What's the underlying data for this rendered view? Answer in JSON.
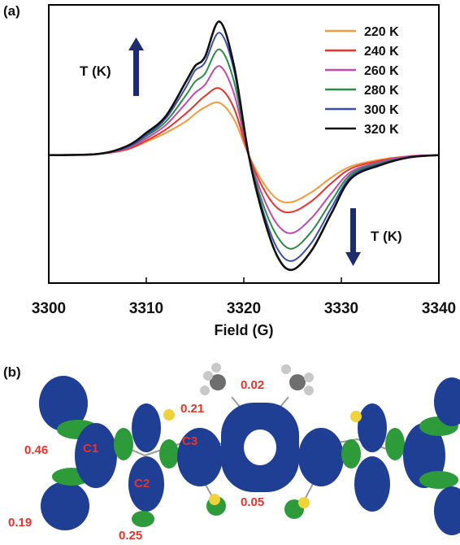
{
  "panel_a_label": "(a)",
  "panel_b_label": "(b)",
  "chart_data": {
    "type": "line",
    "title": "",
    "xlabel": "Field (G)",
    "ylabel": "",
    "xlim": [
      3300,
      3340
    ],
    "xticks": [
      3300,
      3310,
      3320,
      3330,
      3340
    ],
    "ylim": [
      -1.15,
      1.35
    ],
    "grid": false,
    "legend_position": "top-right",
    "series": [
      {
        "name": "220 K",
        "color": "#f39a3c",
        "x": [
          3300,
          3305,
          3308,
          3310,
          3312,
          3314,
          3315,
          3316,
          3317.5,
          3319,
          3320.5,
          3322,
          3323.5,
          3325,
          3327,
          3329,
          3331,
          3334,
          3337,
          3340
        ],
        "y": [
          0,
          0.01,
          0.05,
          0.12,
          0.2,
          0.3,
          0.37,
          0.43,
          0.47,
          0.32,
          0.0,
          -0.25,
          -0.4,
          -0.42,
          -0.33,
          -0.2,
          -0.1,
          -0.04,
          -0.01,
          0
        ]
      },
      {
        "name": "240 K",
        "color": "#e8322a",
        "x": [
          3300,
          3305,
          3308,
          3310,
          3312,
          3314,
          3315,
          3316,
          3317.5,
          3319,
          3320.5,
          3322,
          3323.5,
          3325,
          3327,
          3329,
          3331,
          3334,
          3337,
          3340
        ],
        "y": [
          0,
          0.01,
          0.05,
          0.13,
          0.23,
          0.37,
          0.45,
          0.53,
          0.6,
          0.42,
          0.0,
          -0.3,
          -0.48,
          -0.51,
          -0.41,
          -0.25,
          -0.12,
          -0.05,
          -0.01,
          0
        ]
      },
      {
        "name": "260 K",
        "color": "#c24aac",
        "x": [
          3300,
          3305,
          3308,
          3310,
          3312,
          3314,
          3315,
          3316,
          3317.5,
          3319,
          3320.5,
          3322,
          3323.5,
          3325,
          3327,
          3329,
          3331,
          3334,
          3337,
          3340
        ],
        "y": [
          0,
          0.01,
          0.06,
          0.15,
          0.27,
          0.46,
          0.56,
          0.63,
          0.8,
          0.55,
          0.0,
          -0.38,
          -0.63,
          -0.7,
          -0.56,
          -0.34,
          -0.15,
          -0.06,
          -0.01,
          0
        ]
      },
      {
        "name": "280 K",
        "color": "#2e8b45",
        "x": [
          3300,
          3305,
          3308,
          3310,
          3312,
          3314,
          3315,
          3316,
          3317.5,
          3319,
          3320.5,
          3322,
          3323.5,
          3325,
          3327,
          3329,
          3331,
          3334,
          3337,
          3340
        ],
        "y": [
          0,
          0.01,
          0.07,
          0.17,
          0.3,
          0.53,
          0.66,
          0.73,
          0.95,
          0.66,
          0.0,
          -0.45,
          -0.74,
          -0.84,
          -0.68,
          -0.41,
          -0.17,
          -0.07,
          -0.02,
          0
        ]
      },
      {
        "name": "300 K",
        "color": "#3b4fb0",
        "x": [
          3300,
          3305,
          3308,
          3310,
          3312,
          3314,
          3315,
          3316,
          3317.5,
          3319,
          3320.5,
          3322,
          3323.5,
          3325,
          3327,
          3329,
          3331,
          3334,
          3337,
          3340
        ],
        "y": [
          0,
          0.01,
          0.07,
          0.18,
          0.33,
          0.6,
          0.76,
          0.83,
          1.1,
          0.76,
          0.0,
          -0.51,
          -0.85,
          -0.95,
          -0.78,
          -0.47,
          -0.19,
          -0.08,
          -0.02,
          0
        ]
      },
      {
        "name": "320 K",
        "color": "#111111",
        "x": [
          3300,
          3305,
          3308,
          3310,
          3312,
          3314,
          3315,
          3316,
          3317.5,
          3319,
          3320.5,
          3322,
          3323.5,
          3325,
          3327,
          3329,
          3331,
          3334,
          3337,
          3340
        ],
        "y": [
          0,
          0.01,
          0.08,
          0.2,
          0.35,
          0.65,
          0.8,
          0.88,
          1.2,
          0.8,
          0.0,
          -0.55,
          -0.92,
          -1.03,
          -0.85,
          -0.52,
          -0.21,
          -0.09,
          -0.02,
          0
        ]
      }
    ],
    "annotations": [
      {
        "text": "T (K)",
        "arrow": "up"
      },
      {
        "text": "T (K)",
        "arrow": "down"
      }
    ]
  },
  "panel_b": {
    "spin_densities": [
      "0.02",
      "0.21",
      "0.46",
      "0.05",
      "0.19",
      "0.25"
    ],
    "atom_labels": [
      "C1",
      "C2",
      "C3"
    ],
    "colors": {
      "positive_lobe": "#1f3f95",
      "negative_lobe": "#2e9b3a",
      "sulfur": "#f0d23a",
      "hydrogen": "#c8c8c8",
      "carbon": "#6e6e6e",
      "label": "#e8322a"
    }
  }
}
